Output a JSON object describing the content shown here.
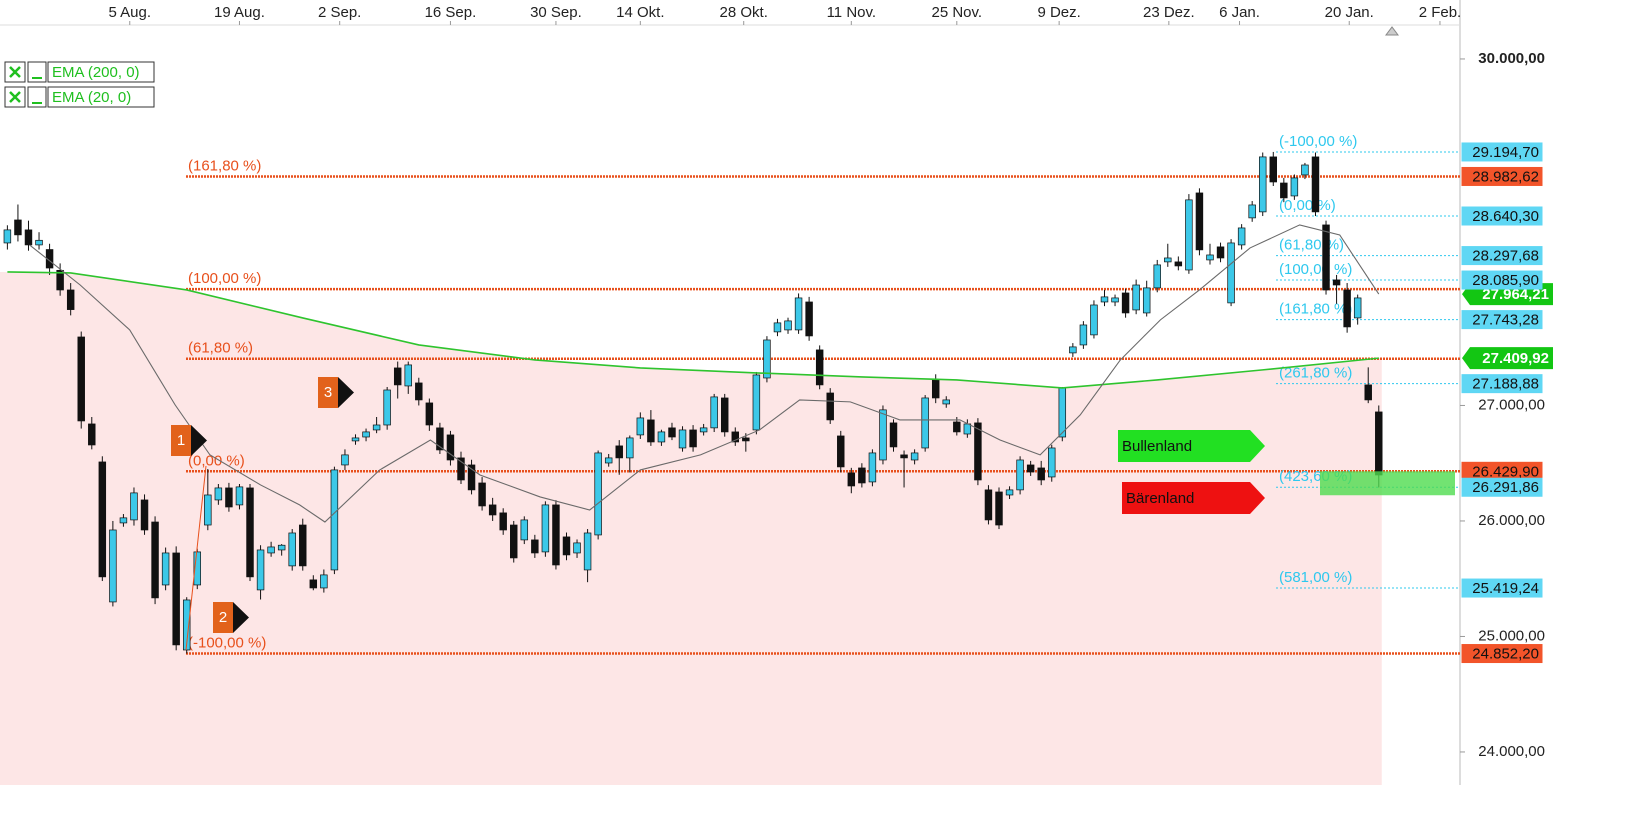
{
  "chart_data": {
    "type": "candlestick",
    "xlim": [
      -0.7,
      137.7
    ],
    "xticks": [
      {
        "value": 11.6,
        "label": "5 Aug."
      },
      {
        "value": 22.0,
        "label": "19 Aug."
      },
      {
        "value": 31.5,
        "label": "2 Sep."
      },
      {
        "value": 42.0,
        "label": "16 Sep."
      },
      {
        "value": 52.0,
        "label": "30 Sep."
      },
      {
        "value": 60.0,
        "label": "14 Okt."
      },
      {
        "value": 69.8,
        "label": "28 Okt."
      },
      {
        "value": 80.0,
        "label": "11 Nov."
      },
      {
        "value": 90.0,
        "label": "25 Nov."
      },
      {
        "value": 99.7,
        "label": "9 Dez."
      },
      {
        "value": 110.1,
        "label": "23 Dez."
      },
      {
        "value": 116.8,
        "label": "6 Jan."
      },
      {
        "value": 127.2,
        "label": "20 Jan."
      },
      {
        "value": 135.8,
        "label": "2 Feb."
      }
    ],
    "ylim": [
      23714,
      30294
    ],
    "yticks": [
      {
        "value": 30000,
        "label": "30.000,00"
      },
      {
        "value": 27000,
        "label": "27.000,00"
      },
      {
        "value": 26000,
        "label": "26.000,00"
      },
      {
        "value": 25000,
        "label": "25.000,00"
      },
      {
        "value": 24000,
        "label": "24.000,00"
      }
    ],
    "up_color": "#3cc8e8",
    "down_color": "#111111",
    "ohlc": [
      [
        28407,
        28560,
        28350,
        28520
      ],
      [
        28606,
        28740,
        28420,
        28477
      ],
      [
        28520,
        28600,
        28340,
        28390
      ],
      [
        28390,
        28500,
        28350,
        28430
      ],
      [
        28350,
        28400,
        28130,
        28190
      ],
      [
        28170,
        28230,
        27950,
        28000
      ],
      [
        28000,
        28060,
        27780,
        27830
      ],
      [
        27593,
        27640,
        26800,
        26866
      ],
      [
        26840,
        26900,
        26620,
        26658
      ],
      [
        26511,
        26560,
        25480,
        25516
      ],
      [
        25299,
        26000,
        25260,
        25922
      ],
      [
        25983,
        26060,
        25950,
        26027
      ],
      [
        26009,
        26290,
        25960,
        26243
      ],
      [
        26182,
        26230,
        25880,
        25922
      ],
      [
        25991,
        26040,
        25280,
        25334
      ],
      [
        25446,
        25770,
        25400,
        25723
      ],
      [
        25723,
        25780,
        24880,
        24927
      ],
      [
        24883,
        25340,
        24852,
        25316
      ],
      [
        25446,
        25760,
        25410,
        25732
      ],
      [
        25965,
        26450,
        25920,
        26225
      ],
      [
        26182,
        26320,
        26140,
        26286
      ],
      [
        26286,
        26330,
        26080,
        26121
      ],
      [
        26139,
        26320,
        26100,
        26295
      ],
      [
        26286,
        26320,
        25480,
        25516
      ],
      [
        25403,
        25790,
        25320,
        25749
      ],
      [
        25723,
        25820,
        25690,
        25775
      ],
      [
        25749,
        25800,
        25700,
        25790
      ],
      [
        25611,
        25930,
        25570,
        25896
      ],
      [
        25965,
        26020,
        25570,
        25611
      ],
      [
        25490,
        25530,
        25400,
        25420
      ],
      [
        25420,
        25580,
        25380,
        25533
      ],
      [
        25576,
        26470,
        25540,
        26442
      ],
      [
        26485,
        26620,
        26440,
        26572
      ],
      [
        26693,
        26750,
        26660,
        26719
      ],
      [
        26727,
        26800,
        26690,
        26771
      ],
      [
        26788,
        26900,
        26760,
        26831
      ],
      [
        26831,
        27160,
        26790,
        27134
      ],
      [
        27325,
        27380,
        27060,
        27178
      ],
      [
        27169,
        27380,
        27100,
        27351
      ],
      [
        27195,
        27240,
        27000,
        27048
      ],
      [
        27022,
        27060,
        26780,
        26831
      ],
      [
        26806,
        26850,
        26580,
        26615
      ],
      [
        26745,
        26780,
        26480,
        26528
      ],
      [
        26546,
        26600,
        26320,
        26355
      ],
      [
        26485,
        26530,
        26230,
        26269
      ],
      [
        26329,
        26380,
        26090,
        26130
      ],
      [
        26139,
        26200,
        26000,
        26052
      ],
      [
        26070,
        26110,
        25880,
        25922
      ],
      [
        25965,
        26000,
        25640,
        25680
      ],
      [
        25836,
        26040,
        25800,
        26009
      ],
      [
        25836,
        25880,
        25680,
        25723
      ],
      [
        25732,
        26170,
        25690,
        26139
      ],
      [
        26139,
        26180,
        25580,
        25619
      ],
      [
        25862,
        25900,
        25660,
        25706
      ],
      [
        25723,
        25840,
        25680,
        25810
      ],
      [
        25576,
        25930,
        25470,
        25896
      ],
      [
        25879,
        26610,
        25840,
        26589
      ],
      [
        26502,
        26580,
        26470,
        26546
      ],
      [
        26650,
        26700,
        26400,
        26546
      ],
      [
        26546,
        26740,
        26420,
        26719
      ],
      [
        26745,
        26940,
        26710,
        26892
      ],
      [
        26875,
        26960,
        26650,
        26684
      ],
      [
        26684,
        26790,
        26650,
        26771
      ],
      [
        26806,
        26850,
        26700,
        26727
      ],
      [
        26632,
        26820,
        26600,
        26788
      ],
      [
        26788,
        26830,
        26600,
        26641
      ],
      [
        26771,
        26840,
        26740,
        26806
      ],
      [
        26806,
        27100,
        26770,
        27074
      ],
      [
        27065,
        27100,
        26730,
        26771
      ],
      [
        26771,
        26810,
        26650,
        26684
      ],
      [
        26719,
        26760,
        26600,
        26693
      ],
      [
        26788,
        27290,
        26750,
        27264
      ],
      [
        27238,
        27600,
        27200,
        27567
      ],
      [
        27637,
        27750,
        27600,
        27715
      ],
      [
        27654,
        27760,
        27620,
        27732
      ],
      [
        27654,
        27970,
        27620,
        27931
      ],
      [
        27896,
        27940,
        27560,
        27602
      ],
      [
        27481,
        27520,
        27140,
        27178
      ],
      [
        27108,
        27150,
        26840,
        26875
      ],
      [
        26736,
        26780,
        26420,
        26468
      ],
      [
        26416,
        26460,
        26240,
        26303
      ],
      [
        26459,
        26500,
        26290,
        26329
      ],
      [
        26338,
        26620,
        26300,
        26589
      ],
      [
        26528,
        27000,
        26490,
        26962
      ],
      [
        26849,
        26880,
        26600,
        26641
      ],
      [
        26572,
        26610,
        26290,
        26546
      ],
      [
        26528,
        26620,
        26490,
        26589
      ],
      [
        26632,
        27090,
        26600,
        27065
      ],
      [
        27221,
        27270,
        27020,
        27065
      ],
      [
        27013,
        27080,
        26980,
        27048
      ],
      [
        26857,
        26900,
        26740,
        26771
      ],
      [
        26753,
        26880,
        26720,
        26840
      ],
      [
        26849,
        26890,
        26310,
        26355
      ],
      [
        26269,
        26310,
        25970,
        26009
      ],
      [
        26251,
        26290,
        25930,
        25965
      ],
      [
        26225,
        26300,
        26190,
        26269
      ],
      [
        26269,
        26560,
        26230,
        26528
      ],
      [
        26485,
        26520,
        26390,
        26424
      ],
      [
        26459,
        26520,
        26310,
        26355
      ],
      [
        26381,
        26660,
        26340,
        26632
      ],
      [
        26727,
        27160,
        26690,
        27152
      ],
      [
        27455,
        27540,
        27420,
        27507
      ],
      [
        27524,
        27730,
        27490,
        27697
      ],
      [
        27611,
        27910,
        27580,
        27870
      ],
      [
        27896,
        28000,
        27860,
        27940
      ],
      [
        27896,
        27960,
        27860,
        27931
      ],
      [
        27974,
        28010,
        27760,
        27801
      ],
      [
        27827,
        28090,
        27790,
        28043
      ],
      [
        27801,
        28080,
        27770,
        28018
      ],
      [
        28018,
        28260,
        27980,
        28217
      ],
      [
        28243,
        28400,
        28200,
        28277
      ],
      [
        28243,
        28290,
        28170,
        28208
      ],
      [
        28173,
        28830,
        28140,
        28780
      ],
      [
        28840,
        28880,
        28300,
        28347
      ],
      [
        28260,
        28400,
        28220,
        28303
      ],
      [
        28373,
        28410,
        28240,
        28277
      ],
      [
        27888,
        28440,
        27860,
        28407
      ],
      [
        28390,
        28570,
        28350,
        28537
      ],
      [
        28624,
        28770,
        28590,
        28736
      ],
      [
        28676,
        29190,
        28640,
        29152
      ],
      [
        29152,
        29195,
        28900,
        28935
      ],
      [
        28926,
        28970,
        28760,
        28797
      ],
      [
        28814,
        29000,
        28780,
        28970
      ],
      [
        28996,
        29100,
        28960,
        29082
      ],
      [
        29152,
        29190,
        28640,
        28676
      ],
      [
        28563,
        28600,
        27960,
        28000
      ],
      [
        28087,
        28130,
        27880,
        28043
      ],
      [
        28000,
        28060,
        27630,
        27680
      ],
      [
        27758,
        27960,
        27700,
        27931
      ],
      [
        27178,
        27330,
        27020,
        27048
      ],
      [
        26944,
        27000,
        26290,
        26398
      ]
    ],
    "series": [
      {
        "name": "EMA (200, 0)",
        "color": "#2ec42e",
        "x": [
          0,
          6,
          17,
          28,
          39,
          50,
          60,
          71,
          81,
          90,
          100,
          109,
          119,
          130
        ],
        "values": [
          28156,
          28147,
          28000,
          27758,
          27524,
          27394,
          27325,
          27282,
          27247,
          27221,
          27152,
          27221,
          27308,
          27409.92
        ],
        "value_labels": [
          null,
          null,
          null,
          null,
          null,
          null,
          null,
          null,
          null,
          null,
          null,
          null,
          null,
          "27.409,92"
        ]
      },
      {
        "name": "EMA (20, 0)",
        "color": "#6a6a6a",
        "x": [
          2.1,
          6.9,
          11.6,
          15.9,
          19.2,
          24,
          27.7,
          30.1,
          35.3,
          40.1,
          44.8,
          50.5,
          55.2,
          60,
          65.7,
          71.3,
          75.1,
          79.9,
          84.6,
          90.3,
          94.1,
          97.9,
          101.7,
          105.5,
          109.3,
          113,
          117.8,
          122.5,
          126.3,
          130
        ],
        "values": [
          28390,
          28043,
          27654,
          27005,
          26572,
          26312,
          26139,
          25991,
          26442,
          26701,
          26398,
          26208,
          26095,
          26442,
          26572,
          26788,
          27048,
          27031,
          26875,
          26875,
          26701,
          26572,
          26918,
          27394,
          27741,
          28000,
          28364,
          28563,
          28476,
          27964.21
        ],
        "value_labels": [
          null,
          null,
          null,
          null,
          null,
          null,
          null,
          null,
          null,
          null,
          null,
          null,
          null,
          null,
          null,
          null,
          null,
          null,
          null,
          null,
          null,
          null,
          null,
          null,
          null,
          null,
          null,
          null,
          null,
          "27.964,21"
        ]
      }
    ],
    "fib_red": {
      "color": "#e8501c",
      "levels": [
        {
          "label": "(161,80 %)",
          "value": 28982.62,
          "value_label": "28.982,62"
        },
        {
          "label": "(100,00 %)",
          "value": 28007.6
        },
        {
          "label": "(61,80 %)",
          "value": 27404.9
        },
        {
          "label": "(0,00 %)",
          "value": 26429.9,
          "value_label": "26.429,90"
        },
        {
          "label": "(-100,00 %)",
          "value": 24852.2,
          "value_label": "24.852,20"
        }
      ]
    },
    "fib_cyan": {
      "color": "#2ec8ee",
      "levels": [
        {
          "label": "(-100,00 %)",
          "value": 29194.7,
          "value_label": "29.194,70"
        },
        {
          "label": "(0,00 %)",
          "value": 28640.3,
          "value_label": "28.640,30"
        },
        {
          "label": "(61,80 %)",
          "value": 28297.68,
          "value_label": "28.297,68"
        },
        {
          "label": "(100,00 %)",
          "value": 28085.9,
          "value_label": "28.085,90"
        },
        {
          "label": "(161,80 %)",
          "value": 27743.28,
          "value_label": "27.743,28"
        },
        {
          "label": "(261,80 %)",
          "value": 27188.88,
          "value_label": "27.188,88"
        },
        {
          "label": "(423,60 %)",
          "value": 26291.86,
          "value_label": "26.291,86"
        },
        {
          "label": "(581,00 %)",
          "value": 25419.24,
          "value_label": "25.419,24"
        }
      ]
    },
    "markers": [
      "1",
      "2",
      "3"
    ],
    "zones": [
      "Bullenland",
      "Bärenland"
    ]
  }
}
